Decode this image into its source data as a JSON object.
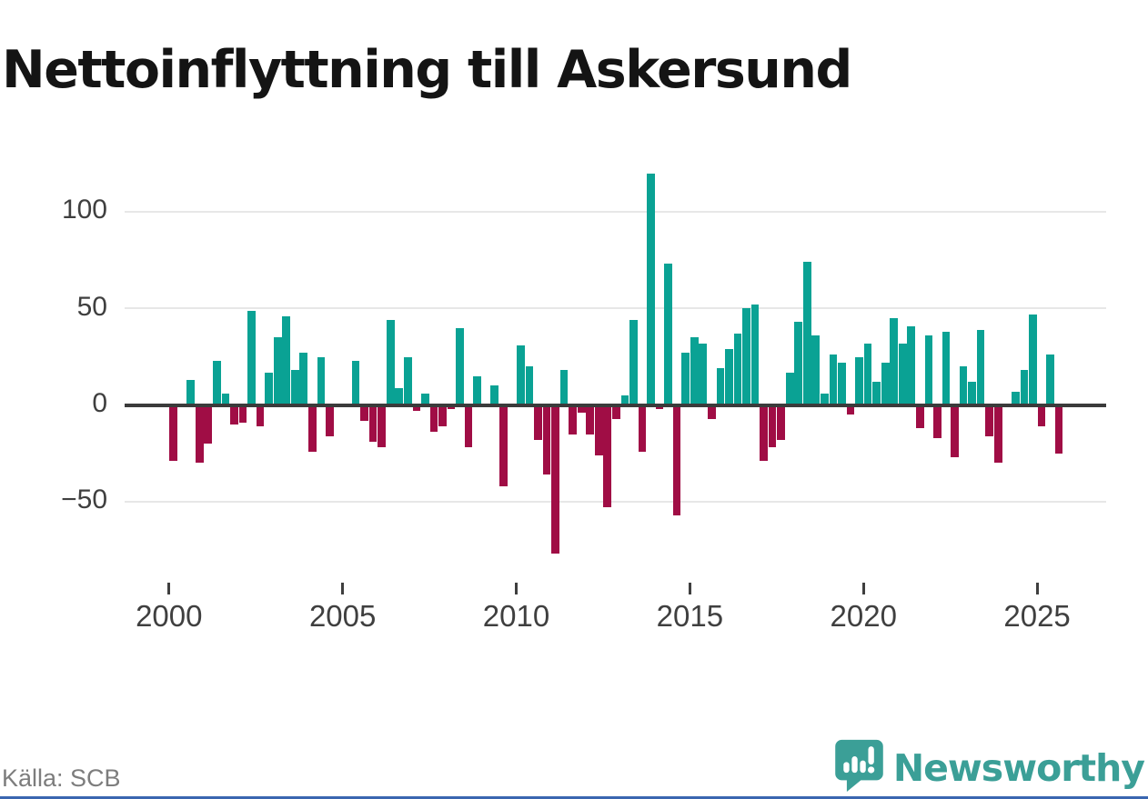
{
  "title": "Nettoinflyttning till Askersund",
  "source": "Källa: SCB",
  "branding": {
    "name": "Newsworthy",
    "logo_icon": "speech-bubble-bar-chart-exclamation"
  },
  "colors": {
    "positive_bar": "#0aa294",
    "negative_bar": "#a00d45",
    "gridline": "#e7e7e7",
    "zero_line": "#3b3b3b",
    "axis_text": "#3f3f3f",
    "title_text": "#141414",
    "source_text": "#7d7d7d",
    "brand_teal": "#3b9f97",
    "bottom_border_blue": "#3a66b0"
  },
  "chart_data": {
    "type": "bar",
    "title": "Nettoinflyttning till Askersund",
    "frequency": "quarterly",
    "start_period": "2000Q1",
    "end_period": "2025Q3",
    "grid": true,
    "legend": "none",
    "ylim": [
      -85,
      130
    ],
    "y_ticks": [
      100,
      50,
      0,
      -50
    ],
    "y_tick_labels": [
      "100",
      "50",
      "0",
      "−50"
    ],
    "x_tick_labels": [
      "2000",
      "2005",
      "2010",
      "2015",
      "2020",
      "2025"
    ],
    "positive_color": "#0aa294",
    "negative_color": "#a00d45",
    "quarters": [
      "2000Q1",
      "2000Q2",
      "2000Q3",
      "2000Q4",
      "2001Q1",
      "2001Q2",
      "2001Q3",
      "2001Q4",
      "2002Q1",
      "2002Q2",
      "2002Q3",
      "2002Q4",
      "2003Q1",
      "2003Q2",
      "2003Q3",
      "2003Q4",
      "2004Q1",
      "2004Q2",
      "2004Q3",
      "2004Q4",
      "2005Q1",
      "2005Q2",
      "2005Q3",
      "2005Q4",
      "2006Q1",
      "2006Q2",
      "2006Q3",
      "2006Q4",
      "2007Q1",
      "2007Q2",
      "2007Q3",
      "2007Q4",
      "2008Q1",
      "2008Q2",
      "2008Q3",
      "2008Q4",
      "2009Q1",
      "2009Q2",
      "2009Q3",
      "2009Q4",
      "2010Q1",
      "2010Q2",
      "2010Q3",
      "2010Q4",
      "2011Q1",
      "2011Q2",
      "2011Q3",
      "2011Q4",
      "2012Q1",
      "2012Q2",
      "2012Q3",
      "2012Q4",
      "2013Q1",
      "2013Q2",
      "2013Q3",
      "2013Q4",
      "2014Q1",
      "2014Q2",
      "2014Q3",
      "2014Q4",
      "2015Q1",
      "2015Q2",
      "2015Q3",
      "2015Q4",
      "2016Q1",
      "2016Q2",
      "2016Q3",
      "2016Q4",
      "2017Q1",
      "2017Q2",
      "2017Q3",
      "2017Q4",
      "2018Q1",
      "2018Q2",
      "2018Q3",
      "2018Q4",
      "2019Q1",
      "2019Q2",
      "2019Q3",
      "2019Q4",
      "2020Q1",
      "2020Q2",
      "2020Q3",
      "2020Q4",
      "2021Q1",
      "2021Q2",
      "2021Q3",
      "2021Q4",
      "2022Q1",
      "2022Q2",
      "2022Q3",
      "2022Q4",
      "2023Q1",
      "2023Q2",
      "2023Q3",
      "2023Q4",
      "2024Q1",
      "2024Q2",
      "2024Q3",
      "2024Q4",
      "2025Q1",
      "2025Q2",
      "2025Q3"
    ],
    "values": [
      -29,
      0,
      13,
      -30,
      -20,
      23,
      6,
      -10,
      -9,
      49,
      -11,
      17,
      35,
      46,
      18,
      27,
      -24,
      25,
      -16,
      0,
      0,
      23,
      -8,
      -19,
      -22,
      44,
      9,
      25,
      -3,
      6,
      -14,
      -11,
      -2,
      40,
      -22,
      15,
      0,
      10,
      -42,
      0,
      31,
      20,
      -18,
      -36,
      -77,
      18,
      -15,
      -4,
      -15,
      -26,
      -53,
      -7,
      5,
      44,
      -24,
      120,
      -2,
      73,
      -57,
      27,
      35,
      32,
      -7,
      19,
      29,
      37,
      50,
      52,
      -29,
      -22,
      -18,
      17,
      43,
      74,
      36,
      6,
      26,
      22,
      -5,
      25,
      32,
      12,
      22,
      45,
      32,
      41,
      -12,
      36,
      -17,
      38,
      -27,
      20,
      12,
      39,
      -16,
      -30,
      0,
      7,
      18,
      47,
      -11,
      26,
      -25
    ]
  }
}
